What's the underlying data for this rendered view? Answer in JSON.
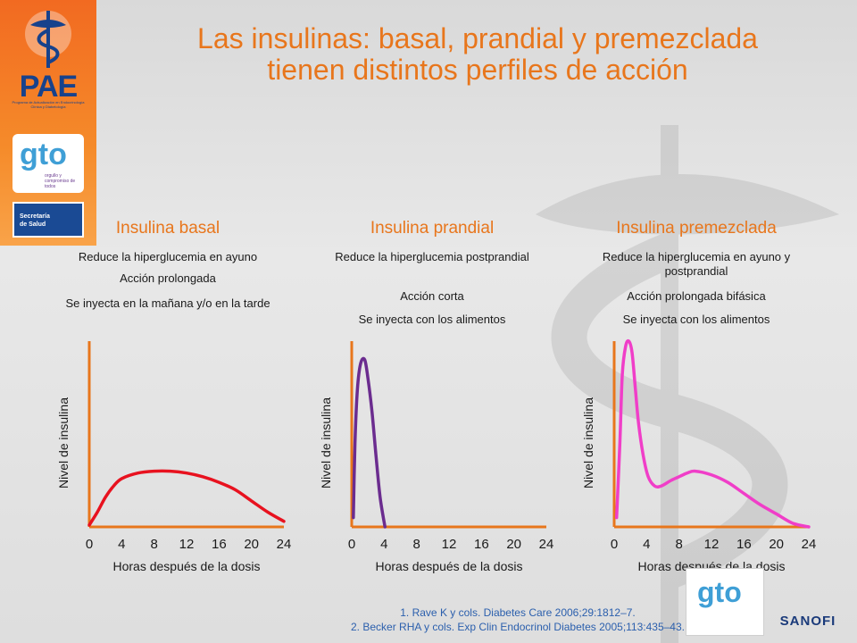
{
  "title": {
    "line1": "Las insulinas: basal, prandial y premezclada",
    "line2": "tienen distintos perfiles de acción"
  },
  "logos": {
    "pae": "PAE",
    "pae_sub": "Programa de Actualización en Endocrinología Clínica y Diabetología",
    "gto": "gto",
    "gto_sub": "orgullo y compromiso de todos",
    "secretaria_line1": "Secretaría",
    "secretaria_line2": "de Salud",
    "sanofi": "SANOFI"
  },
  "panels": [
    {
      "title": "Insulina basal",
      "descriptions": [
        "Reduce la hiperglucemia en ayuno",
        "Acción prolongada",
        "Se inyecta en la mañana y/o en la tarde"
      ]
    },
    {
      "title": "Insulina prandial",
      "descriptions": [
        "Reduce la hiperglucemia postprandial",
        "Acción corta",
        "Se inyecta con los alimentos"
      ]
    },
    {
      "title": "Insulina premezclada",
      "descriptions": [
        "Reduce la hiperglucemia en ayuno y postprandial",
        "Acción prolongada bifásica",
        "Se inyecta con los alimentos"
      ]
    }
  ],
  "chart_data": [
    {
      "type": "line",
      "xlabel": "Horas después de la dosis",
      "ylabel": "Nivel de insulina",
      "xticks": [
        0,
        4,
        8,
        12,
        16,
        20,
        24
      ],
      "xlim": [
        0,
        24
      ],
      "ylim": [
        0,
        1
      ],
      "grid": false,
      "series": [
        {
          "color": "#e8121f",
          "x": [
            0,
            1,
            2,
            3,
            4,
            6,
            8,
            10,
            12,
            14,
            16,
            18,
            20,
            22,
            24
          ],
          "y": [
            0.01,
            0.08,
            0.16,
            0.22,
            0.26,
            0.29,
            0.3,
            0.3,
            0.29,
            0.27,
            0.24,
            0.2,
            0.14,
            0.08,
            0.03
          ]
        }
      ]
    },
    {
      "type": "line",
      "xlabel": "Horas después de la dosis",
      "ylabel": "Nivel de insulina",
      "xticks": [
        0,
        4,
        8,
        12,
        16,
        20,
        24
      ],
      "xlim": [
        0,
        24
      ],
      "ylim": [
        0,
        1
      ],
      "grid": false,
      "series": [
        {
          "color": "#6b2c8f",
          "x": [
            0.2,
            0.4,
            0.7,
            1.1,
            1.6,
            2,
            2.5,
            3,
            3.5,
            4.1
          ],
          "y": [
            0.05,
            0.45,
            0.74,
            0.88,
            0.9,
            0.8,
            0.62,
            0.38,
            0.16,
            0.0
          ]
        }
      ]
    },
    {
      "type": "line",
      "xlabel": "Horas después de la dosis",
      "ylabel": "Nivel de insulina",
      "xticks": [
        0,
        4,
        8,
        12,
        16,
        20,
        24
      ],
      "xlim": [
        0,
        24
      ],
      "ylim": [
        0,
        1
      ],
      "grid": false,
      "series": [
        {
          "color": "#f03ec8",
          "x": [
            0.3,
            0.7,
            1,
            1.4,
            1.8,
            2.2,
            2.6,
            3,
            3.6,
            4.2,
            5,
            5.8,
            7,
            8,
            9,
            10,
            12,
            14,
            16,
            18,
            20,
            22,
            24
          ],
          "y": [
            0.05,
            0.45,
            0.82,
            0.97,
            1.0,
            0.94,
            0.75,
            0.56,
            0.38,
            0.27,
            0.22,
            0.22,
            0.25,
            0.27,
            0.29,
            0.3,
            0.28,
            0.24,
            0.18,
            0.12,
            0.07,
            0.02,
            0.0
          ]
        }
      ]
    }
  ],
  "references": {
    "ref1": "1. Rave K y cols. Diabetes Care 2006;29:1812–7.",
    "ref2": "2. Becker RHA y cols. Exp Clin Endocrinol Diabetes 2005;113:435–43."
  }
}
